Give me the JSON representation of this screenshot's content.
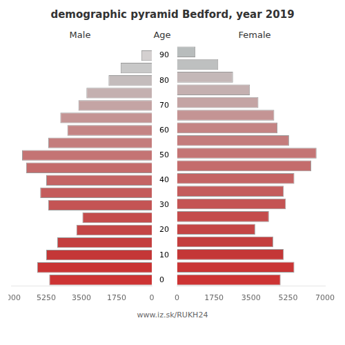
{
  "chart_data": {
    "type": "bar",
    "orientation": "horizontal",
    "title": "demographic pyramid Bedford, year 2019",
    "ylabel": "Age",
    "categories": [
      "0",
      null,
      "10",
      null,
      "20",
      null,
      "30",
      null,
      "40",
      null,
      "50",
      null,
      "60",
      null,
      "70",
      null,
      "80",
      null,
      "90"
    ],
    "series": [
      {
        "name": "Male",
        "colors": [
          "#cd3333",
          "#c93535",
          "#c43737",
          "#c43e3e",
          "#c44545",
          "#c44c4c",
          "#c45454",
          "#c45c5c",
          "#c46464",
          "#c46c6c",
          "#c47474",
          "#c47c7c",
          "#c48484",
          "#c49494",
          "#c4a4a4",
          "#c4b0b0",
          "#c4bcbc",
          "#c8c8c8",
          "#d4d0d0"
        ],
        "values": [
          5100,
          5700,
          5250,
          4700,
          3750,
          3450,
          5150,
          5550,
          5250,
          6250,
          6450,
          5150,
          4200,
          4550,
          3650,
          3250,
          2150,
          1550,
          520
        ]
      },
      {
        "name": "Female",
        "colors": [
          "#cd3333",
          "#c93535",
          "#c43737",
          "#c43e3e",
          "#c44545",
          "#c44c4c",
          "#c45454",
          "#c45c5c",
          "#c46464",
          "#c46c6c",
          "#c47474",
          "#c47c7c",
          "#c48484",
          "#c49494",
          "#c4a4a4",
          "#c4b0b0",
          "#c4b8b8",
          "#bec0c0",
          "#b8bcbc"
        ],
        "values": [
          4900,
          5550,
          5050,
          4550,
          3700,
          4350,
          5150,
          5050,
          5550,
          6350,
          6600,
          5300,
          4750,
          4600,
          3850,
          3450,
          2650,
          1950,
          870
        ]
      }
    ],
    "xlim": [
      0,
      7000
    ],
    "xticks": [
      0,
      1750,
      3500,
      5250,
      7000
    ],
    "grid": false,
    "annotations": [
      "www.iz.sk/RUKH24"
    ]
  }
}
